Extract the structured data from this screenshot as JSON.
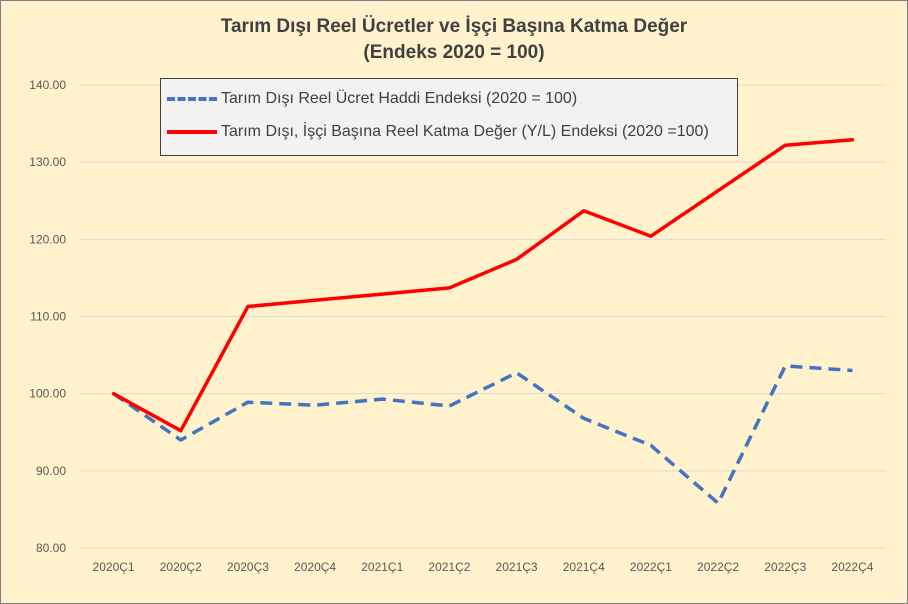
{
  "chart_data": {
    "type": "line",
    "title": "Tarım Dışı Reel Ücretler ve İşçi Başına Katma Değer",
    "subtitle": "(Endeks 2020 = 100)",
    "xlabel": "",
    "ylabel": "",
    "categories": [
      "2020Ç1",
      "2020Ç2",
      "2020Ç3",
      "2020Ç4",
      "2021Ç1",
      "2021Ç2",
      "2021Ç3",
      "2021Ç4",
      "2022Ç1",
      "2022Ç2",
      "2022Ç3",
      "2022Ç4"
    ],
    "ylim": [
      80,
      140
    ],
    "yticks": [
      "80.00",
      "90.00",
      "100.00",
      "110.00",
      "120.00",
      "130.00",
      "140.00"
    ],
    "grid": true,
    "legend_position": "top-left",
    "series": [
      {
        "name": "Tarım Dışı Reel Ücret Haddi Endeksi (2020 = 100)",
        "color": "#4472c4",
        "style": "dashed",
        "values": [
          100.0,
          94.0,
          98.9,
          98.5,
          99.3,
          98.4,
          102.7,
          96.8,
          93.3,
          85.8,
          103.6,
          103.0
        ]
      },
      {
        "name": "Tarım Dışı, İşçi Başına Reel Katma Değer (Y/L) Endeksi (2020 =100)",
        "color": "#ff0000",
        "style": "solid",
        "values": [
          100.0,
          95.2,
          111.3,
          112.1,
          112.9,
          113.7,
          117.4,
          123.7,
          120.4,
          126.3,
          132.2,
          132.9
        ]
      }
    ]
  }
}
